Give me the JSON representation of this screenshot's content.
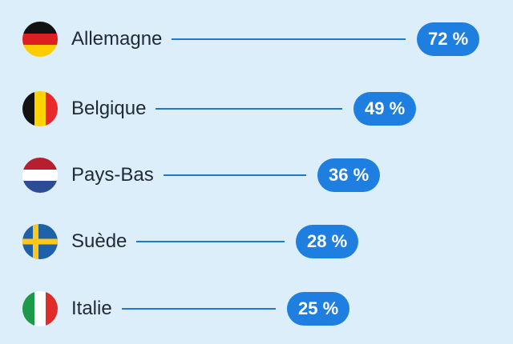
{
  "chart_data": {
    "type": "bar",
    "categories": [
      "Allemagne",
      "Belgique",
      "Pays-Bas",
      "Suède",
      "Italie"
    ],
    "values": [
      72,
      49,
      36,
      28,
      25
    ],
    "value_suffix": " %",
    "flags": [
      "de-flag-icon",
      "be-flag-icon",
      "nl-flag-icon",
      "se-flag-icon",
      "it-flag-icon"
    ],
    "colors": {
      "background": "#dbeef9",
      "pill": "#1f7fe0",
      "line": "#1e78d0",
      "text": "#222b35"
    }
  }
}
